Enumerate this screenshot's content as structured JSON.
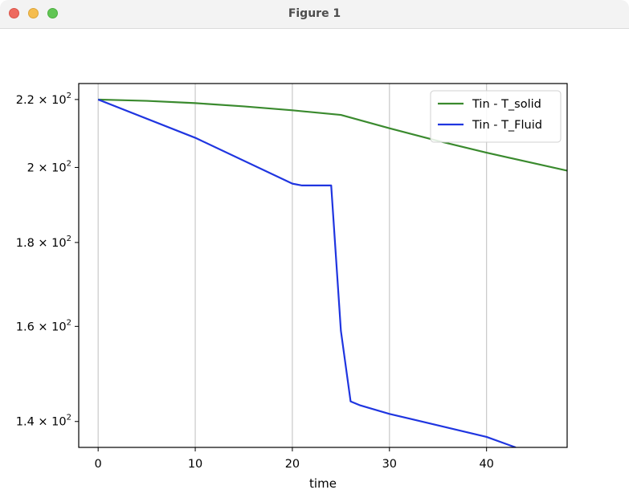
{
  "window": {
    "title": "Figure 1"
  },
  "chart_data": {
    "type": "line",
    "title": "",
    "xlabel": "time",
    "ylabel": "",
    "xlim": [
      -2,
      48.3
    ],
    "ylim": [
      135,
      225
    ],
    "yscale": "log",
    "xgrid": true,
    "ygrid": false,
    "x_ticks": [
      0,
      10,
      20,
      30,
      40
    ],
    "x_tick_labels": [
      "0",
      "10",
      "20",
      "30",
      "40"
    ],
    "y_ticks": [
      {
        "value": 220,
        "mantissa": "2.2",
        "exponent": "2"
      },
      {
        "value": 200,
        "mantissa": "2",
        "exponent": "2"
      },
      {
        "value": 180,
        "mantissa": "1.8",
        "exponent": "2"
      },
      {
        "value": 160,
        "mantissa": "1.6",
        "exponent": "2"
      },
      {
        "value": 140,
        "mantissa": "1.4",
        "exponent": "2"
      }
    ],
    "legend_position": "top-right",
    "series": [
      {
        "name": "Tin - T_solid",
        "color": "#3a8a2e",
        "x": [
          0,
          5,
          10,
          15,
          20,
          25,
          30,
          35,
          40,
          45,
          48.3
        ],
        "y": [
          220,
          219.6,
          218.9,
          217.9,
          216.7,
          215.3,
          211.3,
          207.6,
          204.2,
          201.1,
          199.1
        ]
      },
      {
        "name": "Tin - T_Fluid",
        "color": "#1f35e0",
        "x": [
          0,
          10,
          20,
          21,
          24,
          25,
          26,
          27,
          30,
          40,
          43
        ],
        "y": [
          220,
          208.5,
          195.5,
          195,
          195,
          159,
          144,
          143.2,
          141.5,
          137,
          135
        ]
      }
    ]
  }
}
